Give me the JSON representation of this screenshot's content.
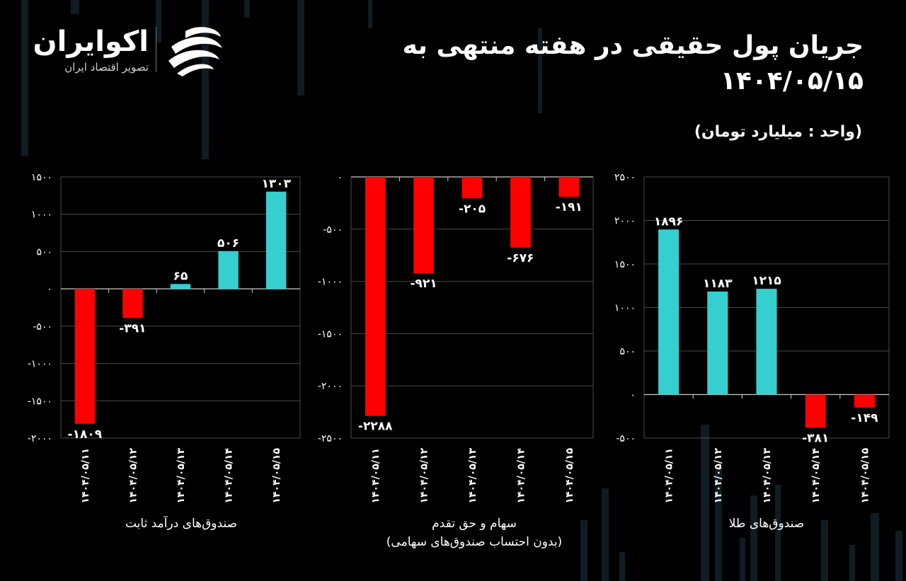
{
  "brand": {
    "name": "اکوایران",
    "tagline": "تصویر اقتصاد ایران"
  },
  "title": "جریان پول حقیقی در هفته منتهی به ۱۴۰۴/۰۵/۱۵",
  "unit": "(واحد : میلیارد تومان)",
  "colors": {
    "positive": "#35CFCF",
    "negative": "#FF0000",
    "background": "#000000",
    "grid": "#4a4a4a",
    "deco": "#0f1c22"
  },
  "chart_data": [
    {
      "type": "bar",
      "caption": "صندوق‌های درآمد ثابت",
      "categories": [
        "۱۴۰۴/۰۵/۱۱",
        "۱۴۰۴/۰۵/۱۲",
        "۱۴۰۴/۰۵/۱۳",
        "۱۴۰۴/۰۵/۱۴",
        "۱۴۰۴/۰۵/۱۵"
      ],
      "values": [
        -1809,
        -391,
        65,
        506,
        1303
      ],
      "value_labels": [
        "-۱۸۰۹",
        "-۳۹۱",
        "۶۵",
        "۵۰۶",
        "۱۳۰۳"
      ],
      "ylim": [
        -2000,
        1500
      ],
      "yticks": [
        1500,
        1000,
        500,
        0,
        -500,
        -1000,
        -1500,
        -2000
      ],
      "ytick_labels": [
        "۱۵۰۰",
        "۱۰۰۰",
        "۵۰۰",
        "۰",
        "-۵۰۰",
        "-۱۰۰۰",
        "-۱۵۰۰",
        "-۲۰۰۰"
      ],
      "grid": true
    },
    {
      "type": "bar",
      "caption": "سهام و حق تقدم",
      "subcaption": "(بدون احتساب صندوق‌های سهامی)",
      "categories": [
        "۱۴۰۴/۰۵/۱۱",
        "۱۴۰۴/۰۵/۱۲",
        "۱۴۰۴/۰۵/۱۳",
        "۱۴۰۴/۰۵/۱۴",
        "۱۴۰۴/۰۵/۱۵"
      ],
      "values": [
        -2288,
        -921,
        -205,
        -676,
        -191
      ],
      "value_labels": [
        "-۲۲۸۸",
        "-۹۲۱",
        "-۲۰۵",
        "-۶۷۶",
        "-۱۹۱"
      ],
      "ylim": [
        -2500,
        0
      ],
      "yticks": [
        0,
        -500,
        -1000,
        -1500,
        -2000,
        -2500
      ],
      "ytick_labels": [
        "۰",
        "-۵۰۰",
        "-۱۰۰۰",
        "-۱۵۰۰",
        "-۲۰۰۰",
        "-۲۵۰۰"
      ],
      "grid": true
    },
    {
      "type": "bar",
      "caption": "صندوق‌های طلا",
      "categories": [
        "۱۴۰۴/۰۵/۱۱",
        "۱۴۰۴/۰۵/۱۲",
        "۱۴۰۴/۰۵/۱۳",
        "۱۴۰۴/۰۵/۱۴",
        "۱۴۰۴/۰۵/۱۵"
      ],
      "values": [
        1896,
        1183,
        1215,
        -381,
        -149
      ],
      "value_labels": [
        "۱۸۹۶",
        "۱۱۸۳",
        "۱۲۱۵",
        "-۳۸۱",
        "-۱۴۹"
      ],
      "ylim": [
        -500,
        2500
      ],
      "yticks": [
        2500,
        2000,
        1500,
        1000,
        500,
        0,
        -500
      ],
      "ytick_labels": [
        "۲۵۰۰",
        "۲۰۰۰",
        "۱۵۰۰",
        "۱۰۰۰",
        "۵۰۰",
        "۰",
        "-۵۰۰"
      ],
      "grid": true
    }
  ]
}
